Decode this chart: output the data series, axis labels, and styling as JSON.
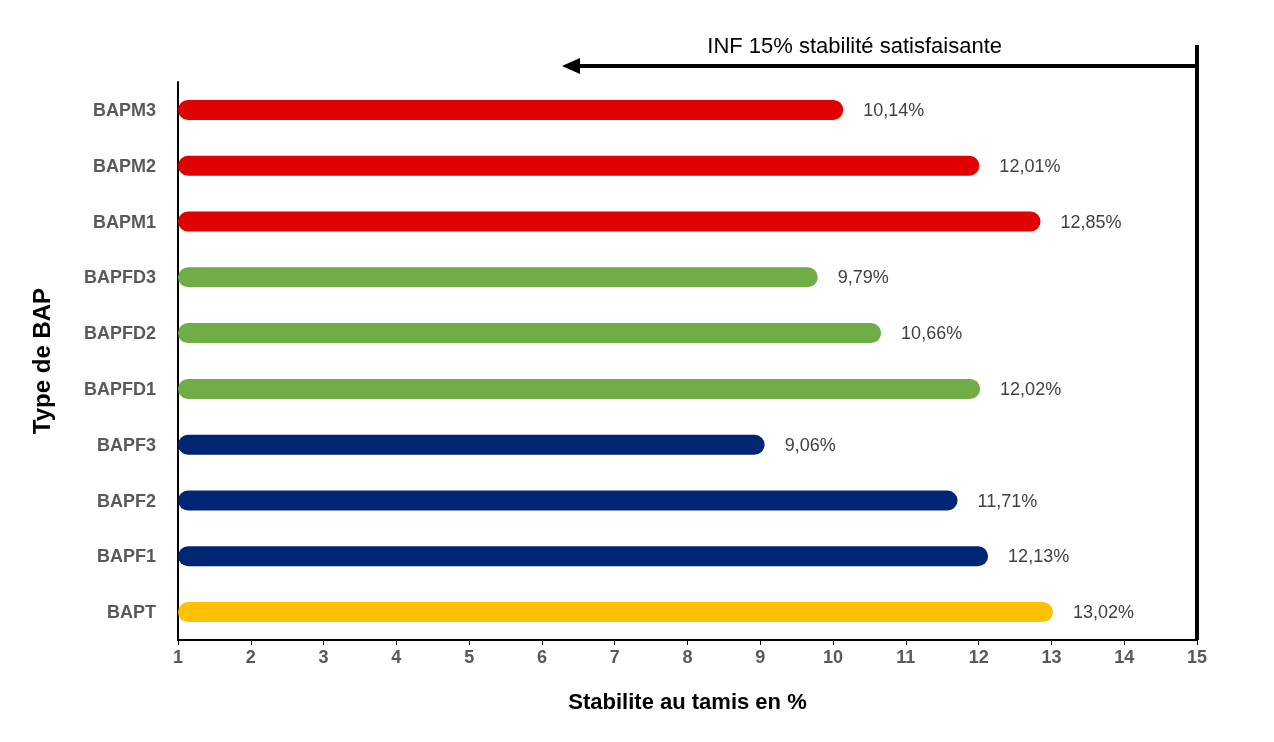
{
  "chart_data": {
    "type": "bar",
    "orientation": "horizontal",
    "xlabel": "Stabilite au tamis en %",
    "ylabel": "Type de BAP",
    "categories": [
      "BAPM3",
      "BAPM2",
      "BAPM1",
      "BAPFD3",
      "BAPFD2",
      "BAPFD1",
      "BAPF3",
      "BAPF2",
      "BAPF1",
      "BAPT"
    ],
    "values": [
      10.14,
      12.01,
      12.85,
      9.79,
      10.66,
      12.02,
      9.06,
      11.71,
      12.13,
      13.02
    ],
    "value_labels": [
      "10,14%",
      "12,01%",
      "12,85%",
      "9,79%",
      "10,66%",
      "12,02%",
      "9,06%",
      "11,71%",
      "12,13%",
      "13,02%"
    ],
    "colors": [
      "#e00000",
      "#e00000",
      "#e00000",
      "#70ad47",
      "#70ad47",
      "#70ad47",
      "#002673",
      "#002673",
      "#002673",
      "#ffc000"
    ],
    "xlim": [
      1,
      15
    ],
    "xticks": [
      1,
      2,
      3,
      4,
      5,
      6,
      7,
      8,
      9,
      10,
      11,
      12,
      13,
      14,
      15
    ],
    "ref_lines": [
      {
        "axis": "x",
        "value": 15,
        "label": "INF 15% stabilité satisfaisante",
        "color": "#000000"
      }
    ],
    "grid": false
  }
}
